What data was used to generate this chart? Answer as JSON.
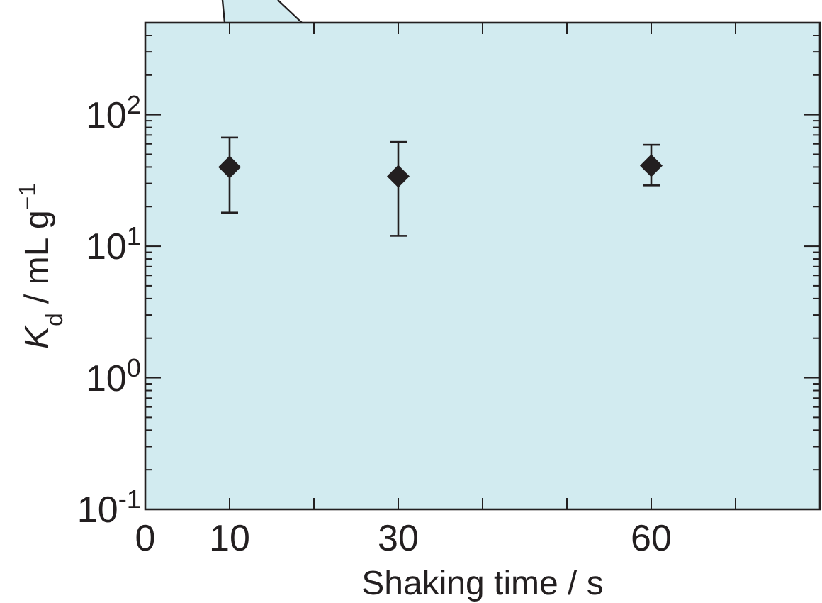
{
  "chart_data": {
    "type": "scatter",
    "xlabel": "Shaking time / s",
    "ylabel": "K$_{d}$ / mL g$^{−1}$",
    "x": [
      10,
      30,
      60
    ],
    "series": [
      {
        "color": "#231f20",
        "values": [
          40,
          34,
          41
        ],
        "errors": [
          [
            18,
            67
          ],
          [
            12,
            62
          ],
          [
            29,
            59
          ]
        ]
      }
    ],
    "marker": "diamond",
    "log": "y",
    "grid": false,
    "xlim": [
      0,
      80
    ],
    "xticks": [
      0,
      10,
      {
        "value": 20,
        "label": null
      },
      30,
      {
        "value": 40,
        "label": null
      },
      {
        "value": 50,
        "label": null
      },
      60,
      {
        "value": 70,
        "label": null
      }
    ],
    "ylim": [
      0.1,
      500
    ],
    "yticks": [
      {
        "value": 0.1,
        "label": "10$^{-1}$"
      },
      {
        "value": 0.2,
        "label": null
      },
      {
        "value": 0.3,
        "label": null
      },
      {
        "value": 0.4,
        "label": null
      },
      {
        "value": 0.5,
        "label": null
      },
      {
        "value": 0.6,
        "label": null
      },
      {
        "value": 0.7,
        "label": null
      },
      {
        "value": 0.8,
        "label": null
      },
      {
        "value": 0.9,
        "label": null
      },
      {
        "value": 1,
        "label": "10$^{0}$"
      },
      {
        "value": 2,
        "label": null
      },
      {
        "value": 3,
        "label": null
      },
      {
        "value": 4,
        "label": null
      },
      {
        "value": 5,
        "label": null
      },
      {
        "value": 6,
        "label": null
      },
      {
        "value": 7,
        "label": null
      },
      {
        "value": 8,
        "label": null
      },
      {
        "value": 9,
        "label": null
      },
      {
        "value": 10,
        "label": "10$^{1}$"
      },
      {
        "value": 20,
        "label": null
      },
      {
        "value": 30,
        "label": null
      },
      {
        "value": 40,
        "label": null
      },
      {
        "value": 50,
        "label": null
      },
      {
        "value": 60,
        "label": null
      },
      {
        "value": 70,
        "label": null
      },
      {
        "value": 80,
        "label": null
      },
      {
        "value": 90,
        "label": null
      },
      {
        "value": 100,
        "label": "10$^{2}$"
      },
      {
        "value": 200,
        "label": null
      },
      {
        "value": 300,
        "label": null
      },
      {
        "value": 400,
        "label": null
      }
    ]
  }
}
